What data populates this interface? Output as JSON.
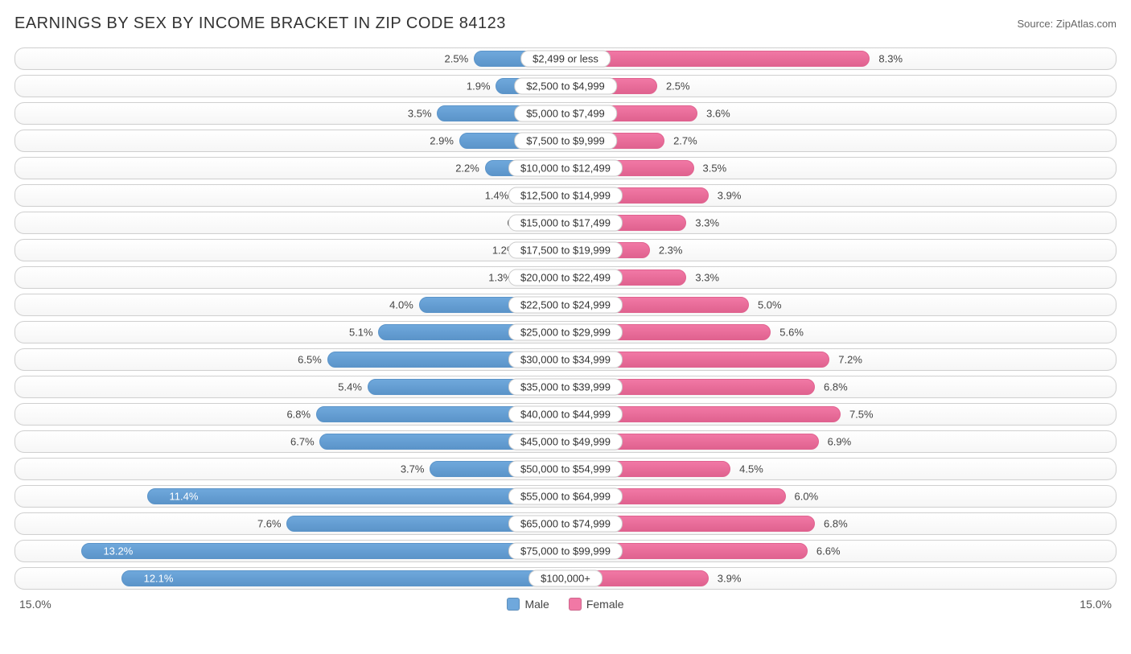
{
  "title": "EARNINGS BY SEX BY INCOME BRACKET IN ZIP CODE 84123",
  "source": "Source: ZipAtlas.com",
  "chart": {
    "type": "diverging-bar",
    "max_scale": 15.0,
    "axis_left_label": "15.0%",
    "axis_right_label": "15.0%",
    "male_color": "#6fa8dc",
    "male_border": "#5b94c9",
    "female_color": "#f178a5",
    "female_border": "#e0628f",
    "row_bg_top": "#ffffff",
    "row_bg_bottom": "#f6f6f6",
    "row_border": "#d0d0d0",
    "label_bg": "#ffffff",
    "label_border": "#cccccc",
    "text_color": "#333333",
    "rows": [
      {
        "label": "$2,499 or less",
        "male": 2.5,
        "male_txt": "2.5%",
        "female": 8.3,
        "female_txt": "8.3%"
      },
      {
        "label": "$2,500 to $4,999",
        "male": 1.9,
        "male_txt": "1.9%",
        "female": 2.5,
        "female_txt": "2.5%"
      },
      {
        "label": "$5,000 to $7,499",
        "male": 3.5,
        "male_txt": "3.5%",
        "female": 3.6,
        "female_txt": "3.6%"
      },
      {
        "label": "$7,500 to $9,999",
        "male": 2.9,
        "male_txt": "2.9%",
        "female": 2.7,
        "female_txt": "2.7%"
      },
      {
        "label": "$10,000 to $12,499",
        "male": 2.2,
        "male_txt": "2.2%",
        "female": 3.5,
        "female_txt": "3.5%"
      },
      {
        "label": "$12,500 to $14,999",
        "male": 1.4,
        "male_txt": "1.4%",
        "female": 3.9,
        "female_txt": "3.9%"
      },
      {
        "label": "$15,000 to $17,499",
        "male": 0.63,
        "male_txt": "0.63%",
        "female": 3.3,
        "female_txt": "3.3%"
      },
      {
        "label": "$17,500 to $19,999",
        "male": 1.2,
        "male_txt": "1.2%",
        "female": 2.3,
        "female_txt": "2.3%"
      },
      {
        "label": "$20,000 to $22,499",
        "male": 1.3,
        "male_txt": "1.3%",
        "female": 3.3,
        "female_txt": "3.3%"
      },
      {
        "label": "$22,500 to $24,999",
        "male": 4.0,
        "male_txt": "4.0%",
        "female": 5.0,
        "female_txt": "5.0%"
      },
      {
        "label": "$25,000 to $29,999",
        "male": 5.1,
        "male_txt": "5.1%",
        "female": 5.6,
        "female_txt": "5.6%"
      },
      {
        "label": "$30,000 to $34,999",
        "male": 6.5,
        "male_txt": "6.5%",
        "female": 7.2,
        "female_txt": "7.2%"
      },
      {
        "label": "$35,000 to $39,999",
        "male": 5.4,
        "male_txt": "5.4%",
        "female": 6.8,
        "female_txt": "6.8%"
      },
      {
        "label": "$40,000 to $44,999",
        "male": 6.8,
        "male_txt": "6.8%",
        "female": 7.5,
        "female_txt": "7.5%"
      },
      {
        "label": "$45,000 to $49,999",
        "male": 6.7,
        "male_txt": "6.7%",
        "female": 6.9,
        "female_txt": "6.9%"
      },
      {
        "label": "$50,000 to $54,999",
        "male": 3.7,
        "male_txt": "3.7%",
        "female": 4.5,
        "female_txt": "4.5%"
      },
      {
        "label": "$55,000 to $64,999",
        "male": 11.4,
        "male_txt": "11.4%",
        "female": 6.0,
        "female_txt": "6.0%"
      },
      {
        "label": "$65,000 to $74,999",
        "male": 7.6,
        "male_txt": "7.6%",
        "female": 6.8,
        "female_txt": "6.8%"
      },
      {
        "label": "$75,000 to $99,999",
        "male": 13.2,
        "male_txt": "13.2%",
        "female": 6.6,
        "female_txt": "6.6%"
      },
      {
        "label": "$100,000+",
        "male": 12.1,
        "male_txt": "12.1%",
        "female": 3.9,
        "female_txt": "3.9%"
      }
    ]
  },
  "legend": {
    "male": "Male",
    "female": "Female"
  }
}
